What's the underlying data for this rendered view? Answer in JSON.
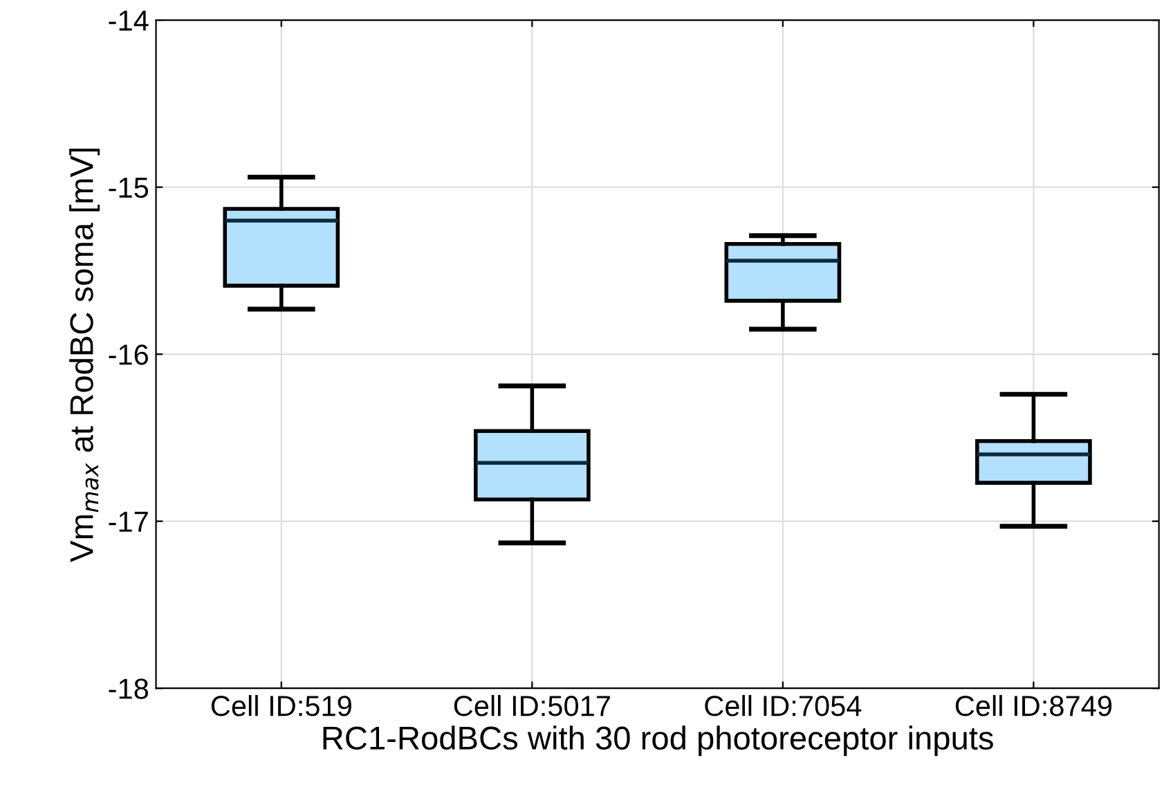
{
  "chart_data": {
    "type": "box",
    "xlabel": "RC1-RodBCs with 30 rod photoreceptor inputs",
    "ylabel": "Vm$_{max}$ at RodBC soma [mV]",
    "categories": [
      "Cell ID:519",
      "Cell ID:5017",
      "Cell ID:7054",
      "Cell ID:8749"
    ],
    "series": [
      {
        "color": "#b3e0fd",
        "boxes": [
          {
            "low": -15.73,
            "q1": -15.59,
            "median": -15.2,
            "q3": -15.13,
            "high": -14.94
          },
          {
            "low": -17.13,
            "q1": -16.87,
            "median": -16.65,
            "q3": -16.46,
            "high": -16.19
          },
          {
            "low": -15.85,
            "q1": -15.68,
            "median": -15.44,
            "q3": -15.34,
            "high": -15.29
          },
          {
            "low": -17.03,
            "q1": -16.77,
            "median": -16.6,
            "q3": -16.52,
            "high": -16.24
          }
        ]
      }
    ],
    "ylim": [
      -18,
      -14
    ],
    "yticks": [
      -18,
      -17,
      -16,
      -15,
      -14
    ],
    "grid": true
  }
}
